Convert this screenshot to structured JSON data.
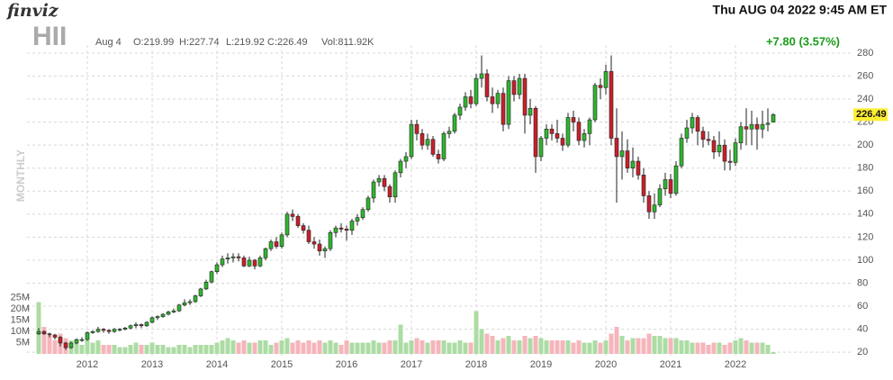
{
  "header": {
    "logo": "finviz",
    "datetime": "Thu AUG 04 2022 9:45 AM ET",
    "ticker": "HII",
    "date": "Aug 4",
    "open": "O:219.99",
    "high": "H:227.74",
    "low": "L:219.92",
    "close": "C:226.49",
    "volume": "Vol:811.92K",
    "change": "+7.80 (3.57%)",
    "timeframe": "MONTHLY"
  },
  "chart_data": {
    "type": "candlestick",
    "categories": [
      null,
      null,
      null,
      null,
      null,
      null,
      null,
      null,
      null,
      "2012",
      null,
      null,
      null,
      null,
      null,
      null,
      null,
      null,
      null,
      null,
      null,
      "2013",
      null,
      null,
      null,
      null,
      null,
      null,
      null,
      null,
      null,
      null,
      null,
      "2014",
      null,
      null,
      null,
      null,
      null,
      null,
      null,
      null,
      null,
      null,
      null,
      "2015",
      null,
      null,
      null,
      null,
      null,
      null,
      null,
      null,
      null,
      null,
      null,
      "2016",
      null,
      null,
      null,
      null,
      null,
      null,
      null,
      null,
      null,
      null,
      null,
      "2017",
      null,
      null,
      null,
      null,
      null,
      null,
      null,
      null,
      null,
      null,
      null,
      "2018",
      null,
      null,
      null,
      null,
      null,
      null,
      null,
      null,
      null,
      null,
      null,
      "2019",
      null,
      null,
      null,
      null,
      null,
      null,
      null,
      null,
      null,
      null,
      null,
      "2020",
      null,
      null,
      null,
      null,
      null,
      null,
      null,
      null,
      null,
      null,
      null,
      "2021",
      null,
      null,
      null,
      null,
      null,
      null,
      null,
      null,
      null,
      null,
      null,
      "2022",
      null,
      null,
      null,
      null,
      null,
      null,
      null
    ],
    "open": [
      36,
      38,
      36,
      35,
      33,
      28,
      24,
      28,
      31,
      31,
      37,
      38,
      40,
      39,
      38,
      40,
      40,
      41,
      43,
      44,
      43,
      46,
      50,
      51,
      53,
      55,
      56,
      61,
      63,
      64,
      69,
      75,
      81,
      90,
      96,
      101,
      102,
      103,
      102,
      95,
      100,
      95,
      102,
      110,
      116,
      112,
      122,
      140,
      138,
      130,
      126,
      116,
      114,
      108,
      110,
      124,
      128,
      127,
      126,
      134,
      137,
      144,
      154,
      168,
      171,
      164,
      155,
      176,
      186,
      190,
      218,
      210,
      200,
      205,
      192,
      188,
      210,
      212,
      226,
      233,
      242,
      236,
      258,
      262,
      242,
      236,
      245,
      218,
      256,
      244,
      258,
      226,
      232,
      190,
      206,
      214,
      210,
      206,
      200,
      224,
      220,
      204,
      210,
      222,
      252,
      250,
      264,
      206,
      190,
      195,
      180,
      186,
      174,
      156,
      142,
      148,
      162,
      170,
      158,
      182,
      206,
      215,
      224,
      212,
      205,
      204,
      194,
      200,
      186,
      185,
      202,
      216,
      214,
      218,
      214,
      218,
      219.99
    ],
    "high": [
      41,
      39,
      37,
      36,
      34,
      29,
      29,
      32,
      33,
      38,
      39,
      42,
      41,
      40,
      41,
      41,
      42,
      44,
      46,
      45,
      47,
      51,
      52,
      54,
      56,
      58,
      62,
      66,
      66,
      70,
      76,
      83,
      91,
      98,
      104,
      106,
      106,
      106,
      104,
      103,
      101,
      104,
      111,
      118,
      120,
      124,
      142,
      144,
      140,
      132,
      130,
      120,
      118,
      112,
      126,
      130,
      132,
      130,
      136,
      140,
      146,
      156,
      170,
      174,
      174,
      166,
      178,
      188,
      194,
      222,
      222,
      214,
      210,
      208,
      196,
      212,
      216,
      228,
      236,
      246,
      248,
      262,
      278,
      266,
      250,
      248,
      250,
      260,
      260,
      262,
      262,
      240,
      234,
      208,
      218,
      218,
      222,
      210,
      228,
      230,
      224,
      214,
      224,
      254,
      258,
      270,
      278,
      232,
      212,
      205,
      198,
      190,
      180,
      160,
      158,
      166,
      176,
      175,
      186,
      210,
      222,
      228,
      226,
      216,
      212,
      208,
      212,
      205,
      196,
      206,
      220,
      232,
      230,
      224,
      230,
      232,
      227.74
    ],
    "low": [
      35,
      35,
      33,
      31,
      25,
      22,
      23,
      27,
      29,
      30,
      36,
      37,
      37,
      36,
      37,
      38,
      39,
      40,
      41,
      41,
      42,
      45,
      48,
      50,
      52,
      54,
      55,
      60,
      61,
      63,
      68,
      74,
      80,
      88,
      94,
      97,
      98,
      99,
      94,
      94,
      92,
      94,
      100,
      108,
      110,
      110,
      120,
      134,
      128,
      123,
      114,
      110,
      104,
      102,
      108,
      120,
      124,
      117,
      122,
      130,
      135,
      142,
      150,
      164,
      160,
      150,
      150,
      172,
      180,
      188,
      204,
      196,
      196,
      190,
      184,
      186,
      206,
      210,
      222,
      230,
      232,
      234,
      250,
      238,
      228,
      232,
      212,
      214,
      238,
      240,
      210,
      218,
      176,
      186,
      200,
      204,
      202,
      195,
      198,
      212,
      200,
      198,
      200,
      220,
      240,
      244,
      200,
      150,
      170,
      176,
      172,
      170,
      150,
      136,
      136,
      146,
      156,
      154,
      156,
      180,
      202,
      210,
      200,
      198,
      200,
      188,
      190,
      178,
      178,
      182,
      196,
      200,
      200,
      196,
      206,
      212,
      219.92
    ],
    "close": [
      38,
      36,
      35,
      33,
      28,
      24,
      28,
      31,
      31,
      37,
      38,
      40,
      39,
      38,
      40,
      40,
      41,
      43,
      44,
      43,
      46,
      50,
      51,
      53,
      55,
      56,
      61,
      63,
      64,
      69,
      75,
      81,
      90,
      96,
      101,
      102,
      103,
      102,
      95,
      100,
      95,
      102,
      110,
      116,
      112,
      122,
      140,
      138,
      130,
      126,
      116,
      114,
      108,
      110,
      124,
      128,
      127,
      126,
      134,
      137,
      144,
      154,
      168,
      171,
      164,
      155,
      176,
      186,
      190,
      218,
      210,
      200,
      205,
      192,
      188,
      210,
      212,
      226,
      233,
      242,
      236,
      258,
      262,
      242,
      236,
      245,
      218,
      256,
      244,
      258,
      226,
      232,
      190,
      206,
      214,
      210,
      206,
      200,
      224,
      220,
      204,
      210,
      222,
      252,
      250,
      264,
      206,
      190,
      195,
      180,
      186,
      174,
      156,
      142,
      148,
      162,
      170,
      158,
      182,
      206,
      215,
      224,
      212,
      205,
      204,
      194,
      200,
      186,
      185,
      202,
      216,
      214,
      218,
      214,
      218,
      219,
      226.49
    ],
    "volume": [
      23,
      12,
      8,
      6,
      9,
      7,
      6,
      5,
      4,
      6,
      5,
      6,
      4,
      4,
      4,
      3,
      3,
      4,
      5,
      4,
      4,
      5,
      4,
      4,
      3,
      3,
      4,
      4,
      3,
      4,
      4,
      4,
      4,
      5,
      6,
      7,
      6,
      5,
      6,
      5,
      5,
      6,
      6,
      4,
      5,
      6,
      7,
      5,
      6,
      5,
      6,
      5,
      6,
      5,
      6,
      5,
      4,
      6,
      5,
      5,
      5,
      5,
      6,
      5,
      5,
      6,
      6,
      13,
      5,
      6,
      7,
      6,
      5,
      6,
      6,
      6,
      5,
      5,
      6,
      5,
      5,
      19,
      11,
      9,
      8,
      6,
      7,
      8,
      6,
      6,
      8,
      7,
      8,
      7,
      6,
      6,
      6,
      6,
      6,
      5,
      6,
      5,
      5,
      6,
      5,
      6,
      9,
      12,
      8,
      6,
      7,
      7,
      7,
      9,
      8,
      8,
      7,
      7,
      7,
      6,
      6,
      5,
      5,
      5,
      4,
      5,
      5,
      4,
      5,
      6,
      7,
      6,
      5,
      5,
      5,
      4,
      0.81
    ],
    "ylim": [
      17,
      287
    ],
    "yticks": [
      20,
      40,
      60,
      80,
      100,
      120,
      140,
      160,
      180,
      200,
      220,
      240,
      260,
      280
    ],
    "y2lim": [
      0,
      25
    ],
    "y2ticks": [
      {
        "value": 5,
        "label": "5M"
      },
      {
        "value": 10,
        "label": "10M"
      },
      {
        "value": 15,
        "label": "15M"
      },
      {
        "value": 20,
        "label": "20M"
      },
      {
        "value": 25,
        "label": "25M"
      }
    ],
    "grid": true,
    "up_color": "#2fb52f",
    "down_color": "#c8202a",
    "volume_up_color": "#acdca4",
    "volume_down_color": "#f5b5bb",
    "last_price_color": "#ffee33"
  }
}
